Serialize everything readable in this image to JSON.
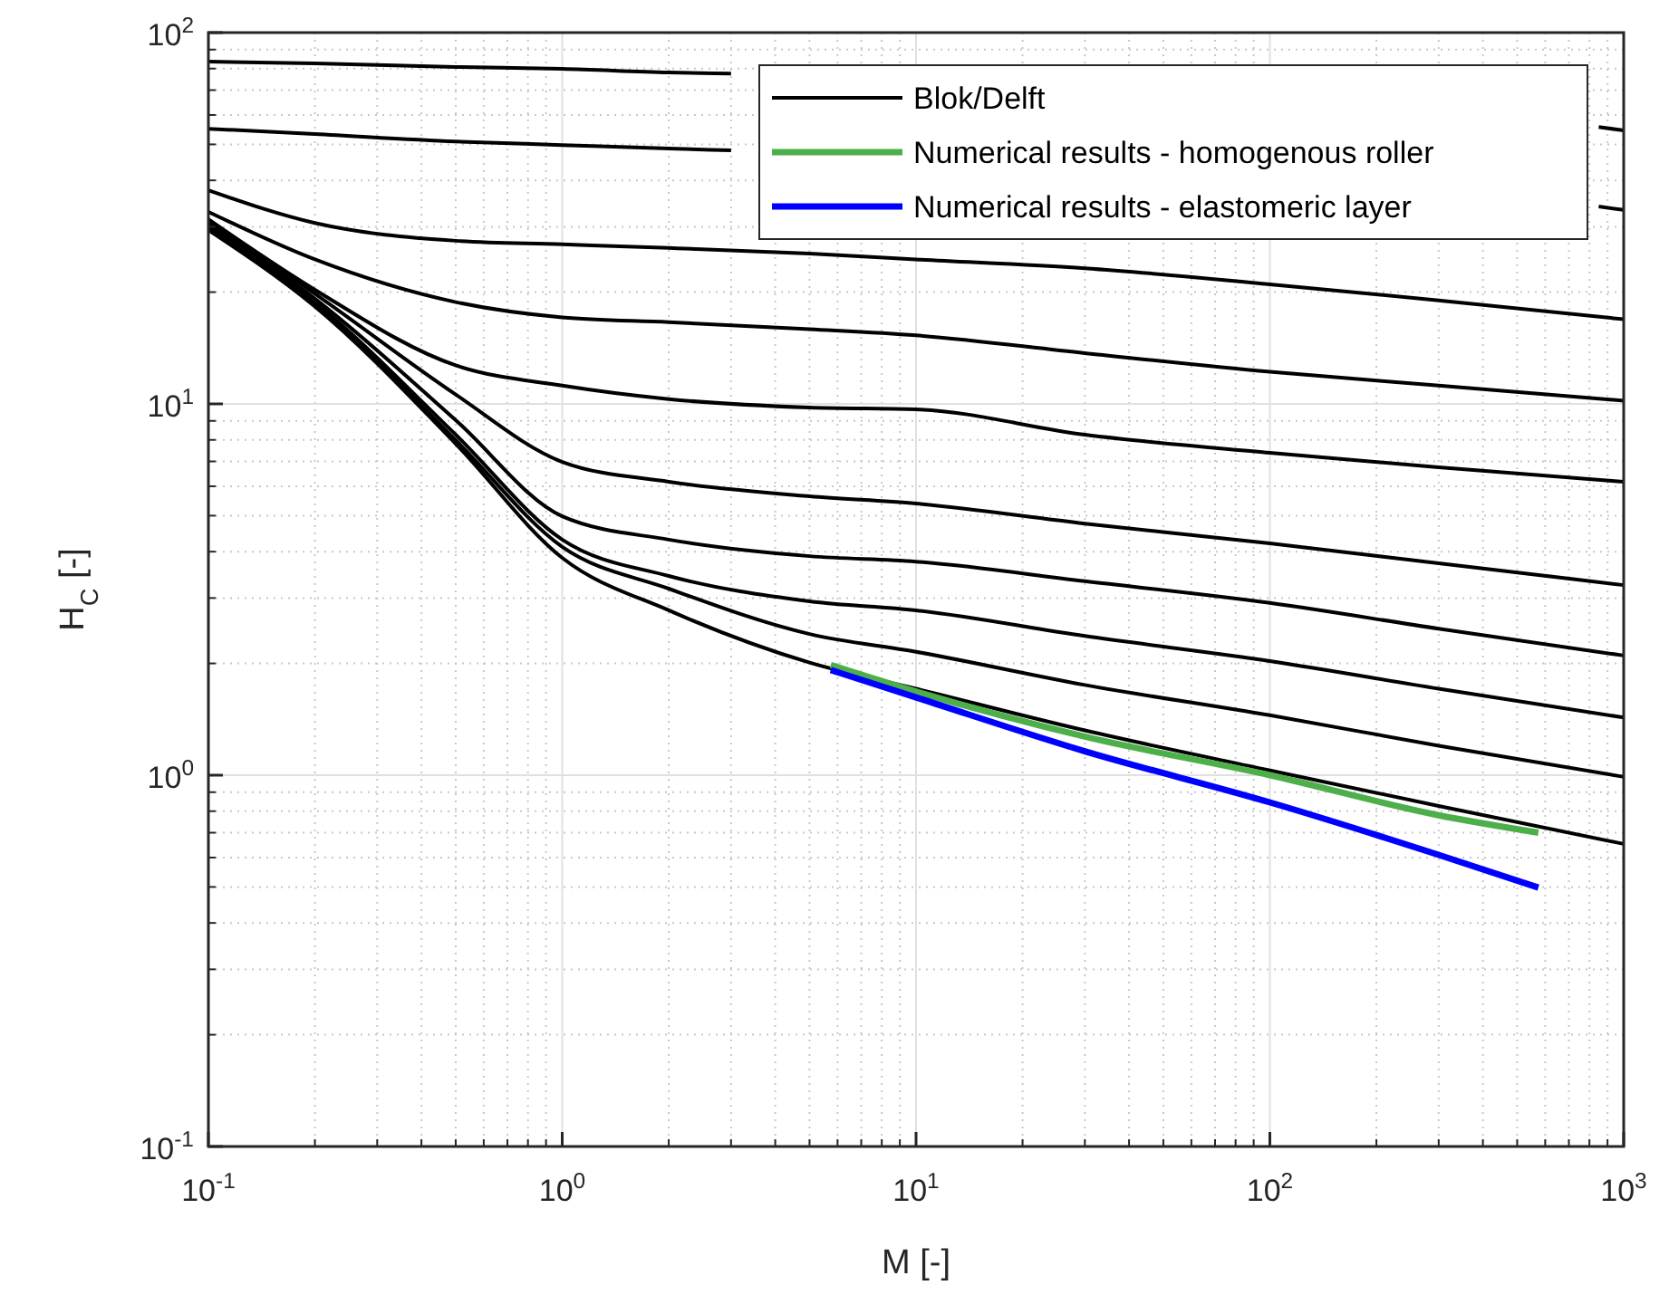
{
  "chart_data": {
    "type": "line",
    "xlabel": "M [-]",
    "ylabel": "H$_{C}$ [-]",
    "log": "xy",
    "grid": true,
    "legend": "top right",
    "xlim": [
      0.1,
      1000
    ],
    "ylim": [
      0.1,
      100
    ],
    "xticks": [
      {
        "value": 0.1,
        "label": "10$^{-1}$"
      },
      {
        "value": 1,
        "label": "10$^{0}$"
      },
      {
        "value": 10,
        "label": "10$^{1}$"
      },
      {
        "value": 100,
        "label": "10$^{2}$"
      },
      {
        "value": 1000,
        "label": "10$^{3}$"
      }
    ],
    "yticks": [
      {
        "value": 0.1,
        "label": "10$^{-1}$"
      },
      {
        "value": 1,
        "label": "10$^{0}$"
      },
      {
        "value": 10,
        "label": "10$^{1}$"
      },
      {
        "value": 100,
        "label": "10$^{2}$"
      }
    ],
    "x": [
      0.1,
      0.2,
      0.5,
      1,
      2,
      5,
      10,
      30,
      100,
      300,
      1000
    ],
    "series": [
      {
        "name": "Blok/Delft",
        "color": "#000000",
        "x": [
          0.1,
          0.2,
          0.5,
          1,
          2,
          3,
          5,
          850,
          1000
        ],
        "values": [
          83.5,
          82.6,
          80.8,
          79.9,
          78.1,
          77.6,
          null,
          55.7,
          54.5
        ]
      },
      {
        "color": "#000000",
        "x": [
          0.1,
          0.2,
          0.5,
          1,
          2,
          3,
          5,
          850,
          1000
        ],
        "values": [
          55.1,
          53.3,
          50.9,
          49.8,
          48.7,
          48.2,
          null,
          34,
          33.3
        ]
      },
      {
        "color": "#000000",
        "values": [
          37.6,
          30.7,
          27.5,
          26.9,
          26.3,
          25.4,
          24.5,
          23.2,
          21,
          19,
          16.9
        ]
      },
      {
        "color": "#000000",
        "values": [
          32.9,
          24.5,
          18.8,
          17.1,
          16.6,
          15.9,
          15.3,
          13.7,
          12.2,
          11.2,
          10.2
        ]
      },
      {
        "color": "#000000",
        "values": [
          31.4,
          20.3,
          12.7,
          11.2,
          10.3,
          9.78,
          9.67,
          8.26,
          7.38,
          6.75,
          6.17
        ]
      },
      {
        "color": "#000000",
        "values": [
          31.1,
          19.8,
          10.6,
          6.98,
          6.17,
          5.64,
          5.39,
          4.76,
          4.21,
          3.72,
          3.25
        ]
      },
      {
        "color": "#000000",
        "values": [
          30.4,
          19.2,
          9.04,
          4.98,
          4.31,
          3.89,
          3.76,
          3.33,
          2.91,
          2.48,
          2.1
        ]
      },
      {
        "color": "#000000",
        "values": [
          30.1,
          18.8,
          8.26,
          4.31,
          3.44,
          2.94,
          2.78,
          2.37,
          2.03,
          1.71,
          1.43
        ]
      },
      {
        "color": "#000000",
        "values": [
          29.7,
          18.6,
          7.99,
          4.12,
          3.18,
          2.4,
          2.15,
          1.75,
          1.45,
          1.2,
          0.99
        ]
      },
      {
        "color": "#000000",
        "values": [
          29.4,
          18.3,
          7.81,
          3.85,
          2.78,
          2.01,
          1.71,
          1.32,
          1.03,
          0.826,
          0.653
        ]
      },
      {
        "name": "Numerical results - homogenous roller",
        "color": "#4daf4a",
        "x": [
          5.74,
          10,
          30,
          100,
          300,
          574
        ],
        "values": [
          1.98,
          1.68,
          1.27,
          1,
          0.78,
          0.7
        ]
      },
      {
        "name": "Numerical results - elastomeric layer",
        "color": "#0000ff",
        "x": [
          5.74,
          10,
          30,
          100,
          300,
          574
        ],
        "values": [
          1.92,
          1.62,
          1.16,
          0.845,
          0.61,
          0.498
        ]
      }
    ]
  }
}
